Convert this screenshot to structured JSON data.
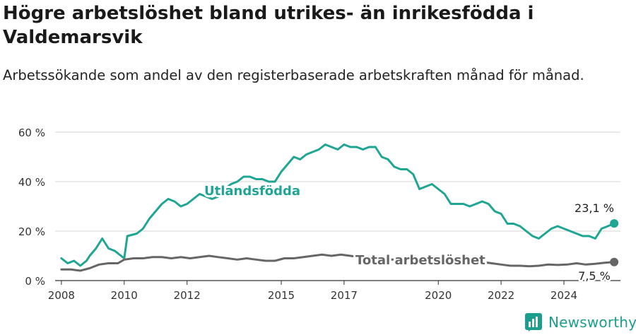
{
  "header": {
    "title": "Högre arbetslöshet bland utrikes- än inrikesfödda i Valdemarsvik",
    "subtitle": "Arbetssökande som andel av den registerbaserade arbetskraften månad för månad."
  },
  "brand": {
    "name": "Newsworthy",
    "color": "#1b9e8e"
  },
  "chart_data": {
    "type": "line",
    "title": "Högre arbetslöshet bland utrikes- än inrikesfödda i Valdemarsvik",
    "subtitle": "Arbetssökande som andel av den registerbaserade arbetskraften månad för månad.",
    "xlabel": "",
    "ylabel": "",
    "xlim": [
      2007.8,
      2025.8
    ],
    "ylim": [
      0,
      60
    ],
    "grid": true,
    "x_ticks": [
      {
        "value": 2008,
        "label": "2008"
      },
      {
        "value": 2010,
        "label": "2010"
      },
      {
        "value": 2012,
        "label": "2012"
      },
      {
        "value": 2015,
        "label": "2015"
      },
      {
        "value": 2017,
        "label": "2017"
      },
      {
        "value": 2020,
        "label": "2020"
      },
      {
        "value": 2022,
        "label": "2022"
      },
      {
        "value": 2024,
        "label": "2024"
      }
    ],
    "y_ticks": [
      {
        "value": 0,
        "label": "0 %"
      },
      {
        "value": 20,
        "label": "20 %"
      },
      {
        "value": 40,
        "label": "40 %"
      },
      {
        "value": 60,
        "label": "60 %"
      }
    ],
    "series": [
      {
        "name": "Utlandsfödda",
        "color": "#1fa593",
        "end_label": "23,1 %",
        "x": [
          2008.0,
          2008.2,
          2008.4,
          2008.6,
          2008.8,
          2008.9,
          2009.1,
          2009.3,
          2009.5,
          2009.7,
          2009.9,
          2010.0,
          2010.1,
          2010.4,
          2010.6,
          2010.8,
          2011.0,
          2011.2,
          2011.4,
          2011.6,
          2011.8,
          2012.0,
          2012.2,
          2012.4,
          2012.8,
          2013.0,
          2013.2,
          2013.4,
          2013.6,
          2013.8,
          2014.0,
          2014.2,
          2014.4,
          2014.6,
          2014.8,
          2015.0,
          2015.2,
          2015.4,
          2015.6,
          2015.8,
          2016.0,
          2016.2,
          2016.4,
          2016.6,
          2016.8,
          2017.0,
          2017.2,
          2017.4,
          2017.6,
          2017.8,
          2018.0,
          2018.2,
          2018.4,
          2018.6,
          2018.8,
          2019.0,
          2019.2,
          2019.4,
          2019.6,
          2019.8,
          2020.0,
          2020.2,
          2020.4,
          2020.6,
          2020.8,
          2021.0,
          2021.2,
          2021.4,
          2021.6,
          2021.8,
          2022.0,
          2022.2,
          2022.4,
          2022.6,
          2022.8,
          2023.0,
          2023.2,
          2023.4,
          2023.6,
          2023.8,
          2024.0,
          2024.2,
          2024.4,
          2024.6,
          2024.8,
          2025.0,
          2025.2,
          2025.4,
          2025.6
        ],
        "y": [
          9,
          7,
          8,
          6,
          8,
          10,
          13,
          17,
          13,
          12,
          10,
          9,
          18,
          19,
          21,
          25,
          28,
          31,
          33,
          32,
          30,
          31,
          33,
          35,
          33,
          34,
          37,
          39,
          40,
          42,
          42,
          41,
          41,
          40,
          40,
          44,
          47,
          50,
          49,
          51,
          52,
          53,
          55,
          54,
          53,
          55,
          54,
          54,
          53,
          54,
          54,
          50,
          49,
          46,
          45,
          45,
          43,
          37,
          38,
          39,
          37,
          35,
          31,
          31,
          31,
          30,
          31,
          32,
          31,
          28,
          27,
          23,
          23,
          22,
          20,
          18,
          17,
          19,
          21,
          22,
          21,
          20,
          19,
          18,
          18,
          17,
          21,
          22,
          23.1
        ]
      },
      {
        "name": "Total arbetslöshet",
        "color": "#666666",
        "end_label": "7,5 %",
        "x": [
          2008.0,
          2008.3,
          2008.6,
          2008.9,
          2009.2,
          2009.5,
          2009.8,
          2010.0,
          2010.3,
          2010.6,
          2010.9,
          2011.2,
          2011.5,
          2011.8,
          2012.1,
          2012.4,
          2012.7,
          2013.0,
          2013.3,
          2013.6,
          2013.9,
          2014.2,
          2014.5,
          2014.8,
          2015.1,
          2015.4,
          2015.7,
          2016.0,
          2016.3,
          2016.6,
          2016.9,
          2017.2,
          2017.5,
          2017.8,
          2018.1,
          2018.4,
          2018.7,
          2019.0,
          2019.3,
          2019.6,
          2019.9,
          2020.2,
          2020.5,
          2020.8,
          2021.1,
          2021.4,
          2021.7,
          2022.0,
          2022.3,
          2022.6,
          2022.9,
          2023.2,
          2023.5,
          2023.8,
          2024.1,
          2024.4,
          2024.7,
          2025.0,
          2025.3,
          2025.6
        ],
        "y": [
          4.5,
          4.5,
          4.0,
          5.0,
          6.5,
          7.0,
          7.0,
          8.5,
          9.0,
          9.0,
          9.5,
          9.5,
          9.0,
          9.5,
          9.0,
          9.5,
          10.0,
          9.5,
          9.0,
          8.5,
          9.0,
          8.5,
          8.0,
          8.0,
          9.0,
          9.0,
          9.5,
          10.0,
          10.5,
          10.0,
          10.5,
          10.0,
          9.5,
          9.0,
          9.0,
          8.5,
          8.5,
          8.0,
          8.0,
          8.0,
          8.5,
          8.0,
          8.0,
          7.5,
          7.5,
          7.5,
          7.0,
          6.5,
          6.0,
          6.0,
          5.8,
          6.0,
          6.5,
          6.3,
          6.5,
          7.0,
          6.5,
          6.8,
          7.2,
          7.5
        ]
      }
    ]
  }
}
